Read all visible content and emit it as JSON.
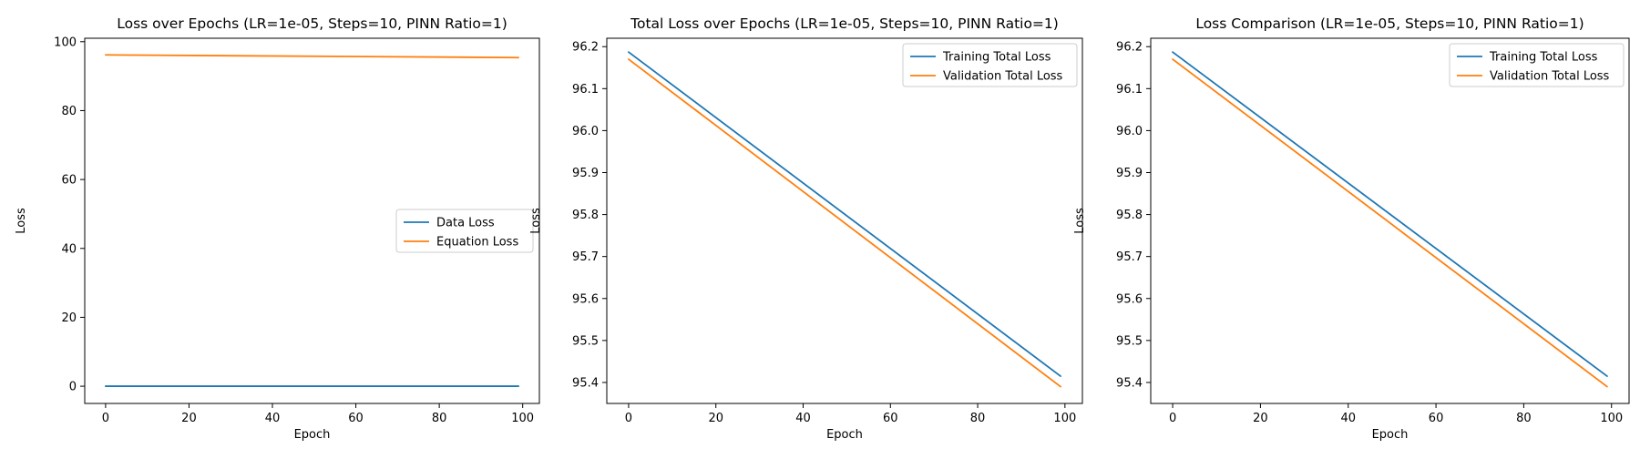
{
  "chart_data": [
    {
      "type": "line",
      "title": "Loss over Epochs (LR=1e-05, Steps=10, PINN Ratio=1)",
      "xlabel": "Epoch",
      "ylabel": "Loss",
      "xlim": [
        -5,
        104
      ],
      "ylim": [
        -5,
        101
      ],
      "xticks": [
        0,
        20,
        40,
        60,
        80,
        100
      ],
      "yticks": [
        0,
        20,
        40,
        60,
        80,
        100
      ],
      "legend_loc": "center-right",
      "x": [
        0,
        99
      ],
      "series": [
        {
          "name": "Data Loss",
          "color": "#1f77b4",
          "values": [
            0.0,
            0.0
          ]
        },
        {
          "name": "Equation Loss",
          "color": "#ff7f0e",
          "values": [
            96.17,
            95.39
          ]
        }
      ]
    },
    {
      "type": "line",
      "title": "Total Loss over Epochs (LR=1e-05, Steps=10, PINN Ratio=1)",
      "xlabel": "Epoch",
      "ylabel": "Loss",
      "xlim": [
        -5,
        104
      ],
      "ylim": [
        95.35,
        96.22
      ],
      "xticks": [
        0,
        20,
        40,
        60,
        80,
        100
      ],
      "yticks": [
        95.4,
        95.5,
        95.6,
        95.7,
        95.8,
        95.9,
        96.0,
        96.1,
        96.2
      ],
      "legend_loc": "top-right",
      "x": [
        0,
        99
      ],
      "series": [
        {
          "name": "Training Total Loss",
          "color": "#1f77b4",
          "values": [
            96.187,
            95.415
          ]
        },
        {
          "name": "Validation Total Loss",
          "color": "#ff7f0e",
          "values": [
            96.17,
            95.39
          ]
        }
      ]
    },
    {
      "type": "line",
      "title": "Loss Comparison (LR=1e-05, Steps=10, PINN Ratio=1)",
      "xlabel": "Epoch",
      "ylabel": "Loss",
      "xlim": [
        -5,
        104
      ],
      "ylim": [
        95.35,
        96.22
      ],
      "xticks": [
        0,
        20,
        40,
        60,
        80,
        100
      ],
      "yticks": [
        95.4,
        95.5,
        95.6,
        95.7,
        95.8,
        95.9,
        96.0,
        96.1,
        96.2
      ],
      "legend_loc": "top-right",
      "x": [
        0,
        99
      ],
      "series": [
        {
          "name": "Training Total Loss",
          "color": "#1f77b4",
          "values": [
            96.187,
            95.415
          ]
        },
        {
          "name": "Validation Total Loss",
          "color": "#ff7f0e",
          "values": [
            96.17,
            95.39
          ]
        }
      ]
    }
  ]
}
